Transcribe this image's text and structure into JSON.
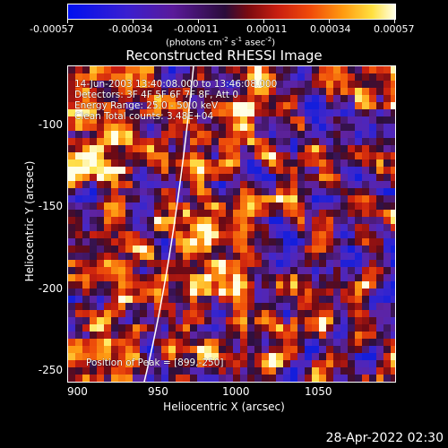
{
  "colorbar": {
    "tick_labels": [
      "-0.00057",
      "-0.00034",
      "-0.00011",
      "0.00011",
      "0.00034",
      "0.00057"
    ],
    "unit_label": "(photons cm",
    "unit_exp1": "-2",
    "unit_mid": " s",
    "unit_exp2": "-1",
    "unit_mid2": " asec",
    "unit_exp3": "-2",
    "unit_end": ")"
  },
  "title": "Reconstructed RHESSI Image",
  "info_lines": [
    "14-Jun-2003 13:40:08.000 to 13:46:08.000",
    "Detectors: 3F 4F 5F 6F 7F 8F, Att 0",
    "Energy Range: 25.0 - 50.0 keV",
    "Clean    Total counts: 3.48E+04"
  ],
  "peak_text": "Position of Peak = [899,-250]",
  "axes": {
    "x_label": "Heliocentric X (arcsec)",
    "y_label": "Heliocentric Y (arcsec)",
    "x_ticks": [
      "900",
      "950",
      "1000",
      "1050"
    ],
    "y_ticks": [
      "-100",
      "-150",
      "-200",
      "-250"
    ]
  },
  "colors": {
    "background": "#000000",
    "limb_line": "#ffffff"
  },
  "timestamp": "28-Apr-2022 02:30"
}
